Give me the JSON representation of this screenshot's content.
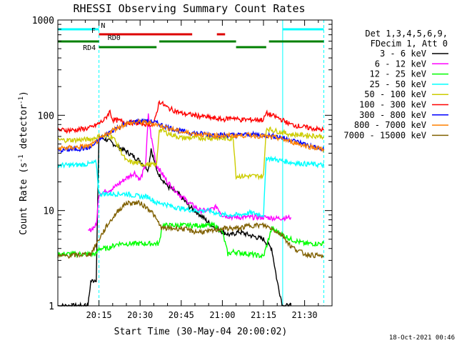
{
  "chart_data": {
    "type": "line",
    "title": "RHESSI Observing Summary Count Rates",
    "xlabel": "Start Time (30-May-04 20:00:02)",
    "ylabel": "Count Rate (s⁻¹ detector⁻¹)",
    "ylabel_base": "Count Rate (s",
    "ylabel_sup1": "-1",
    "ylabel_mid": " detector",
    "ylabel_sup2": "-1",
    "ylabel_end": ")",
    "yscale": "log",
    "x_range_minutes": [
      0,
      100
    ],
    "ylim": [
      1,
      1000
    ],
    "x_ticks": [
      {
        "t": 15,
        "label": "20:15"
      },
      {
        "t": 30,
        "label": "20:30"
      },
      {
        "t": 45,
        "label": "20:45"
      },
      {
        "t": 60,
        "label": "21:00"
      },
      {
        "t": 75,
        "label": "21:15"
      },
      {
        "t": 90,
        "label": "21:30"
      }
    ],
    "y_ticks": [
      {
        "v": 1,
        "label": "1"
      },
      {
        "v": 10,
        "label": "10"
      },
      {
        "v": 100,
        "label": "100"
      },
      {
        "v": 1000,
        "label": "1000"
      }
    ],
    "legend": {
      "position": "right",
      "header": [
        "Det 1,3,4,5,6,9,",
        "FDecim 1, Att 0"
      ]
    },
    "series": [
      {
        "name": "3 - 6 keV",
        "color": "#000000",
        "points": [
          [
            0,
            1
          ],
          [
            11,
            1
          ],
          [
            12,
            1.8
          ],
          [
            14,
            1.9
          ],
          [
            15,
            60
          ],
          [
            18,
            55
          ],
          [
            22,
            47
          ],
          [
            26,
            40
          ],
          [
            30,
            33
          ],
          [
            33,
            27
          ],
          [
            34,
            45
          ],
          [
            36,
            26
          ],
          [
            40,
            18
          ],
          [
            44,
            15
          ],
          [
            48,
            11
          ],
          [
            52,
            9
          ],
          [
            56,
            7
          ],
          [
            60,
            6
          ],
          [
            63,
            5.5
          ],
          [
            66,
            6
          ],
          [
            70,
            5.5
          ],
          [
            75,
            5
          ],
          [
            78,
            4
          ],
          [
            80,
            1.8
          ],
          [
            82,
            1
          ],
          [
            85,
            1
          ]
        ]
      },
      {
        "name": "6 - 12 keV",
        "color": "#ff00ff",
        "points": [
          [
            11,
            6
          ],
          [
            14,
            7
          ],
          [
            15,
            15
          ],
          [
            20,
            17
          ],
          [
            25,
            22
          ],
          [
            28,
            25
          ],
          [
            30,
            21
          ],
          [
            32,
            30
          ],
          [
            33,
            100
          ],
          [
            34,
            60
          ],
          [
            36,
            30
          ],
          [
            40,
            20
          ],
          [
            44,
            15
          ],
          [
            48,
            12
          ],
          [
            52,
            10
          ],
          [
            55,
            10
          ],
          [
            58,
            11
          ],
          [
            60,
            9
          ],
          [
            64,
            8.5
          ],
          [
            70,
            8.5
          ],
          [
            75,
            8.5
          ],
          [
            80,
            8.3
          ],
          [
            85,
            8.5
          ]
        ]
      },
      {
        "name": "12 - 25 keV",
        "color": "#00ff00",
        "points": [
          [
            0,
            3.5
          ],
          [
            10,
            3.5
          ],
          [
            14,
            3.5
          ],
          [
            15,
            4
          ],
          [
            18,
            4
          ],
          [
            22,
            4.5
          ],
          [
            27,
            4.5
          ],
          [
            30,
            4.5
          ],
          [
            37,
            4.5
          ],
          [
            38,
            7
          ],
          [
            45,
            7
          ],
          [
            50,
            7
          ],
          [
            57,
            7
          ],
          [
            60,
            6
          ],
          [
            62,
            3.5
          ],
          [
            64,
            3.7
          ],
          [
            70,
            3.5
          ],
          [
            75,
            3.3
          ],
          [
            78,
            6.5
          ],
          [
            85,
            5
          ],
          [
            90,
            4.5
          ],
          [
            97,
            4.5
          ]
        ]
      },
      {
        "name": "25 - 50 keV",
        "color": "#00ffff",
        "points": [
          [
            0,
            30
          ],
          [
            6,
            30
          ],
          [
            12,
            31
          ],
          [
            14,
            32
          ],
          [
            15,
            15
          ],
          [
            20,
            15
          ],
          [
            25,
            15
          ],
          [
            30,
            14
          ],
          [
            33,
            14
          ],
          [
            36,
            12
          ],
          [
            38,
            12
          ],
          [
            42,
            11
          ],
          [
            45,
            10.5
          ],
          [
            50,
            10
          ],
          [
            55,
            10
          ],
          [
            60,
            9
          ],
          [
            62,
            9
          ],
          [
            66,
            9
          ],
          [
            70,
            9.5
          ],
          [
            75,
            9
          ],
          [
            76,
            36
          ],
          [
            80,
            34
          ],
          [
            85,
            32
          ],
          [
            90,
            31
          ],
          [
            97,
            30
          ]
        ]
      },
      {
        "name": "50 - 100 keV",
        "color": "#cccc00",
        "points": [
          [
            0,
            55
          ],
          [
            6,
            55
          ],
          [
            12,
            56
          ],
          [
            15,
            60
          ],
          [
            20,
            60
          ],
          [
            25,
            33
          ],
          [
            30,
            31
          ],
          [
            36,
            30
          ],
          [
            37,
            72
          ],
          [
            40,
            65
          ],
          [
            45,
            58
          ],
          [
            50,
            58
          ],
          [
            55,
            58
          ],
          [
            60,
            57
          ],
          [
            64,
            57
          ],
          [
            65,
            23
          ],
          [
            70,
            23
          ],
          [
            75,
            23
          ],
          [
            76,
            73
          ],
          [
            80,
            68
          ],
          [
            85,
            63
          ],
          [
            90,
            62
          ],
          [
            97,
            60
          ]
        ]
      },
      {
        "name": "100 - 300 keV",
        "color": "#ff0000",
        "points": [
          [
            0,
            70
          ],
          [
            6,
            70
          ],
          [
            12,
            74
          ],
          [
            15,
            82
          ],
          [
            17,
            90
          ],
          [
            19,
            110
          ],
          [
            20,
            90
          ],
          [
            25,
            85
          ],
          [
            30,
            82
          ],
          [
            35,
            80
          ],
          [
            37,
            140
          ],
          [
            40,
            120
          ],
          [
            45,
            105
          ],
          [
            50,
            100
          ],
          [
            55,
            95
          ],
          [
            60,
            90
          ],
          [
            64,
            95
          ],
          [
            66,
            90
          ],
          [
            75,
            90
          ],
          [
            76,
            105
          ],
          [
            80,
            95
          ],
          [
            85,
            80
          ],
          [
            90,
            75
          ],
          [
            97,
            70
          ]
        ]
      },
      {
        "name": "300 - 800 keV",
        "color": "#0000ff",
        "points": [
          [
            0,
            43
          ],
          [
            6,
            44
          ],
          [
            12,
            46
          ],
          [
            15,
            55
          ],
          [
            20,
            70
          ],
          [
            25,
            82
          ],
          [
            30,
            88
          ],
          [
            35,
            85
          ],
          [
            40,
            75
          ],
          [
            45,
            68
          ],
          [
            50,
            65
          ],
          [
            55,
            63
          ],
          [
            60,
            62
          ],
          [
            65,
            62
          ],
          [
            70,
            63
          ],
          [
            75,
            62
          ],
          [
            80,
            60
          ],
          [
            85,
            55
          ],
          [
            90,
            50
          ],
          [
            97,
            43
          ]
        ]
      },
      {
        "name": "800 - 7000 keV",
        "color": "#ff8000",
        "points": [
          [
            0,
            45
          ],
          [
            6,
            46
          ],
          [
            12,
            48
          ],
          [
            15,
            55
          ],
          [
            20,
            70
          ],
          [
            25,
            82
          ],
          [
            30,
            85
          ],
          [
            35,
            82
          ],
          [
            40,
            74
          ],
          [
            45,
            67
          ],
          [
            50,
            64
          ],
          [
            55,
            62
          ],
          [
            60,
            61
          ],
          [
            65,
            61
          ],
          [
            70,
            62
          ],
          [
            75,
            60
          ],
          [
            80,
            58
          ],
          [
            85,
            53
          ],
          [
            90,
            48
          ],
          [
            97,
            44
          ]
        ]
      },
      {
        "name": "7000 - 15000 keV",
        "color": "#806000",
        "points": [
          [
            0,
            3.3
          ],
          [
            12,
            3.5
          ],
          [
            15,
            5
          ],
          [
            18,
            7
          ],
          [
            22,
            10
          ],
          [
            25,
            12
          ],
          [
            30,
            12
          ],
          [
            34,
            10
          ],
          [
            36,
            8
          ],
          [
            38,
            6.5
          ],
          [
            45,
            6.5
          ],
          [
            50,
            6
          ],
          [
            55,
            6
          ],
          [
            60,
            6.5
          ],
          [
            66,
            6.5
          ],
          [
            70,
            7
          ],
          [
            75,
            7
          ],
          [
            78,
            6.5
          ],
          [
            82,
            5.5
          ],
          [
            85,
            4.2
          ],
          [
            90,
            3.5
          ],
          [
            97,
            3.3
          ]
        ]
      }
    ],
    "state_bars": [
      {
        "label": "N",
        "color": "#00ffff",
        "label_t": 16.5,
        "level": "top",
        "segments": [
          [
            0,
            15
          ],
          [
            82,
            97
          ]
        ]
      },
      {
        "label": "F",
        "color": "#dd0000",
        "label_t": 13,
        "level": "upper",
        "segments": [
          [
            15,
            49
          ],
          [
            58,
            61
          ]
        ]
      },
      {
        "label": "RD0",
        "color": "#008000",
        "label_t": 20.5,
        "level": "middle",
        "segments": [
          [
            0,
            15
          ],
          [
            37,
            65
          ],
          [
            77,
            97
          ]
        ]
      },
      {
        "label": "RD4",
        "color": "#008000",
        "label_t": 11.5,
        "level": "lower",
        "segments": [
          [
            15,
            36
          ],
          [
            65,
            76
          ]
        ]
      }
    ],
    "verticals": [
      {
        "t": 0,
        "style": "solid"
      },
      {
        "t": 15,
        "style": "dashed"
      },
      {
        "t": 82,
        "style": "solid"
      },
      {
        "t": 97,
        "style": "dashed"
      }
    ],
    "timestamp": "18-Oct-2021 00:46"
  }
}
